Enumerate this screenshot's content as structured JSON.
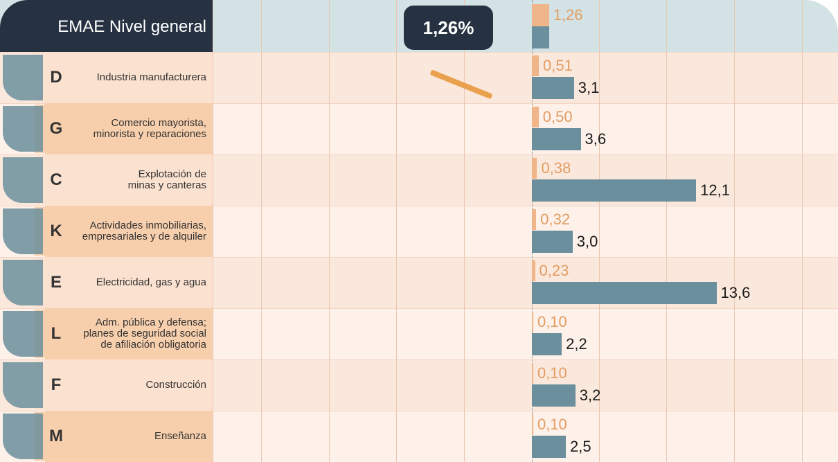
{
  "chart_data": {
    "type": "bar",
    "orientation": "horizontal",
    "badge": "1,26%",
    "categories": [
      "EMAE Nivel general",
      "Industria manufacturera",
      "Comercio mayorista,\nminorista y reparaciones",
      "Explotación de\nminas y canteras",
      "Actividades inmobiliarias,\nempresariales y de alquiler",
      "Electricidad, gas y agua",
      "Adm. pública y defensa;\nplanes de seguridad social\nde afiliación obligatoria",
      "Construcción",
      "Enseñanza"
    ],
    "letters": [
      null,
      "D",
      "G",
      "C",
      "K",
      "E",
      "L",
      "F",
      "M"
    ],
    "series": [
      {
        "color": "#f0b589",
        "label_color": "#e29d62",
        "values": [
          1.26,
          0.51,
          0.5,
          0.38,
          0.32,
          0.23,
          0.1,
          0.1,
          0.1
        ],
        "value_labels": [
          "1,26",
          "0,51",
          "0,50",
          "0,38",
          "0,32",
          "0,23",
          "0,10",
          "0,10",
          "0,10"
        ]
      },
      {
        "color": "#6b8f9c",
        "label_color": "#1a1a1a",
        "values": [
          1.3,
          3.1,
          3.6,
          12.1,
          3.0,
          13.6,
          2.2,
          3.2,
          2.5
        ],
        "value_labels": [
          null,
          "3,1",
          "3,6",
          "12,1",
          "3,0",
          "13,6",
          "2,2",
          "3,2",
          "2,5"
        ]
      }
    ]
  }
}
